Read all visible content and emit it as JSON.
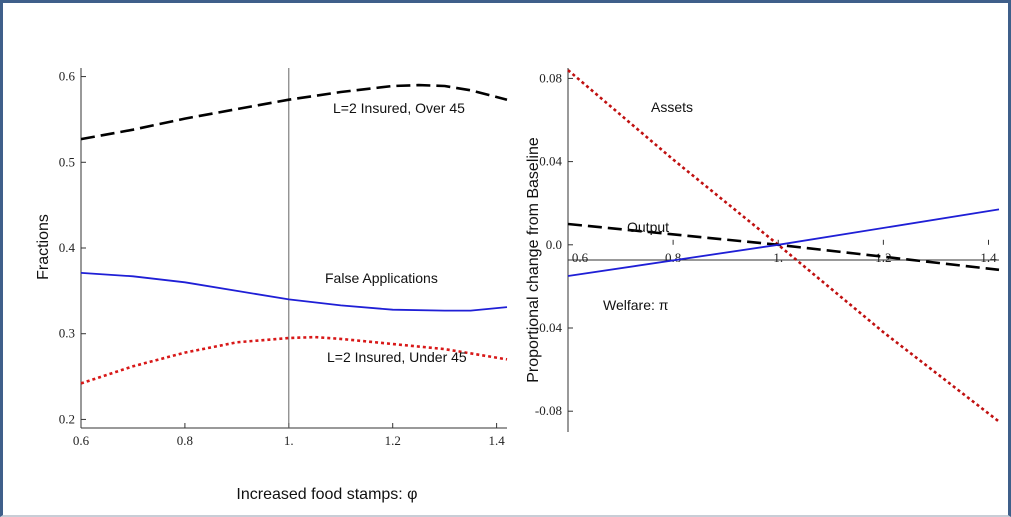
{
  "chart_data": [
    {
      "type": "line",
      "xlabel": "Increased food stamps: φ",
      "ylabel": "Fractions",
      "xlim": [
        0.6,
        1.42
      ],
      "ylim": [
        0.19,
        0.61
      ],
      "x_ticks": [
        "0.6",
        "0.8",
        "1.",
        "1.2",
        "1.4"
      ],
      "y_ticks": [
        "0.2",
        "0.3",
        "0.4",
        "0.5",
        "0.6"
      ],
      "grid": false,
      "vertical_reference_line": 1.0,
      "series": [
        {
          "name": "L=2 Insured, Over 45",
          "color": "#000000",
          "style": "dashed",
          "x": [
            0.6,
            0.7,
            0.8,
            0.9,
            1.0,
            1.1,
            1.2,
            1.25,
            1.3,
            1.35,
            1.42
          ],
          "y": [
            0.527,
            0.538,
            0.551,
            0.562,
            0.573,
            0.582,
            0.589,
            0.59,
            0.589,
            0.584,
            0.573
          ]
        },
        {
          "name": "False Applications",
          "color": "#1f1fd6",
          "style": "solid",
          "x": [
            0.6,
            0.7,
            0.8,
            0.9,
            1.0,
            1.1,
            1.2,
            1.3,
            1.35,
            1.42
          ],
          "y": [
            0.371,
            0.367,
            0.36,
            0.35,
            0.34,
            0.333,
            0.328,
            0.327,
            0.327,
            0.331
          ]
        },
        {
          "name": "L=2 Insured, Under 45",
          "color": "#d81818",
          "style": "dotted",
          "x": [
            0.6,
            0.7,
            0.8,
            0.9,
            1.0,
            1.05,
            1.1,
            1.2,
            1.3,
            1.42
          ],
          "y": [
            0.242,
            0.262,
            0.278,
            0.29,
            0.295,
            0.296,
            0.294,
            0.288,
            0.282,
            0.27
          ]
        }
      ]
    },
    {
      "type": "line",
      "ylabel": "Proportional change  from Baseline",
      "xlim": [
        0.6,
        1.42
      ],
      "ylim": [
        -0.09,
        0.085
      ],
      "x_ticks": [
        "0.6",
        "0.8",
        "1.",
        "1.2",
        "1.4"
      ],
      "y_ticks": [
        "0.08",
        "0.04",
        "0.0",
        "-0.04",
        "-0.08"
      ],
      "grid": false,
      "series": [
        {
          "name": "Assets",
          "color": "#c01010",
          "style": "dotted",
          "x": [
            0.6,
            0.8,
            1.0,
            1.2,
            1.42
          ],
          "y": [
            0.084,
            0.041,
            0.0,
            -0.042,
            -0.085
          ]
        },
        {
          "name": "Output",
          "color": "#000000",
          "style": "dashed",
          "x": [
            0.6,
            1.0,
            1.42
          ],
          "y": [
            0.01,
            0.0,
            -0.012
          ]
        },
        {
          "name": "Welfare: π",
          "color": "#1f1fd6",
          "style": "solid",
          "x": [
            0.6,
            1.0,
            1.42
          ],
          "y": [
            -0.015,
            0.0,
            0.017
          ]
        }
      ]
    }
  ]
}
